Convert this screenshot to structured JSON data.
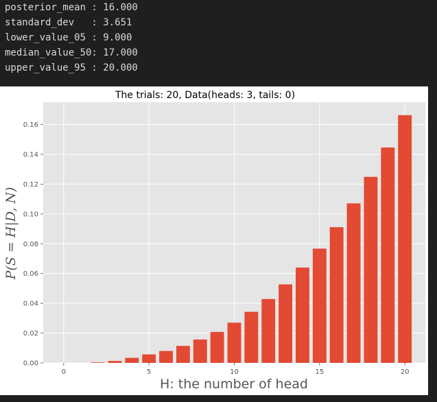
{
  "console": {
    "lines": [
      "posterior_mean : 16.000",
      "standard_dev   : 3.651",
      "lower_value_05 : 9.000",
      "median_value_50: 17.000",
      "upper_value_95 : 20.000"
    ]
  },
  "chart_data": {
    "type": "bar",
    "title": "The trials: 20, Data(heads: 3, tails: 0)",
    "xlabel": "H: the number of head",
    "ylabel": "P(S = H|D, N)",
    "x": [
      0,
      1,
      2,
      3,
      4,
      5,
      6,
      7,
      8,
      9,
      10,
      11,
      12,
      13,
      14,
      15,
      16,
      17,
      18,
      19,
      20
    ],
    "values": [
      0,
      0.0,
      0.0004,
      0.0013,
      0.0034,
      0.0057,
      0.008,
      0.0114,
      0.0157,
      0.0208,
      0.027,
      0.0343,
      0.0429,
      0.0527,
      0.064,
      0.0767,
      0.0911,
      0.1071,
      0.1249,
      0.1446,
      0.1663
    ],
    "xlim": [
      -1.2,
      21.2
    ],
    "ylim": [
      0,
      0.175
    ],
    "xticks": [
      0,
      5,
      10,
      15,
      20
    ],
    "yticks": [
      0.0,
      0.02,
      0.04,
      0.06,
      0.08,
      0.1,
      0.12,
      0.14,
      0.16
    ],
    "xtick_labels": [
      "0",
      "5",
      "10",
      "15",
      "20"
    ],
    "ytick_labels": [
      "0.00",
      "0.02",
      "0.04",
      "0.06",
      "0.08",
      "0.10",
      "0.12",
      "0.14",
      "0.16"
    ],
    "grid": true,
    "bar_color": "#e24a33",
    "plot_background": "#e5e5e5"
  }
}
